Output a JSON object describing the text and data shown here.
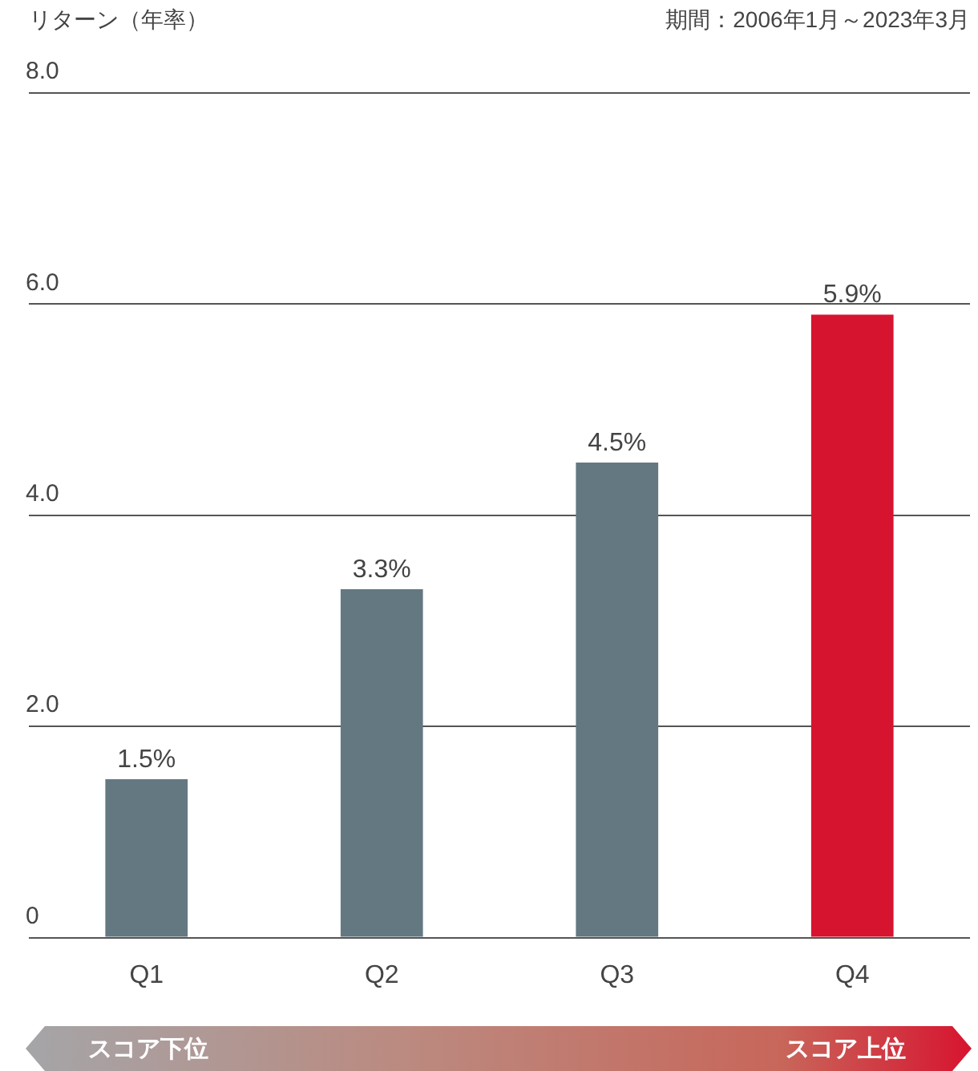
{
  "chart_data": {
    "type": "bar",
    "subtitle": "期間：2006年1月～2023年3月",
    "ylabel": "リターン（年率）",
    "categories": [
      "Q1",
      "Q2",
      "Q3",
      "Q4"
    ],
    "values": [
      1.5,
      3.3,
      4.5,
      5.9
    ],
    "colors": [
      "#647882",
      "#647882",
      "#647882",
      "#d7142f"
    ],
    "value_labels": [
      "1.5%",
      "3.3%",
      "4.5%",
      "5.9%"
    ],
    "ylim": [
      0,
      8
    ],
    "yticks": [
      {
        "value": 0,
        "label": "0"
      },
      {
        "value": 2,
        "label": "2.0"
      },
      {
        "value": 4,
        "label": "4.0"
      },
      {
        "value": 6,
        "label": "6.0"
      },
      {
        "value": 8,
        "label": "8.0"
      }
    ],
    "grid": "y",
    "annotations": [
      "スコア下位",
      "スコア上位"
    ]
  }
}
